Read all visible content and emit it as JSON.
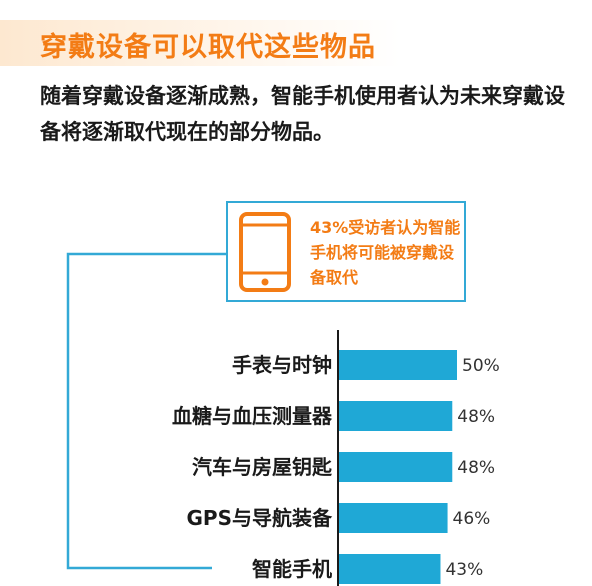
{
  "title": "穿戴设备可以取代这些物品",
  "subtitle": "随着穿戴设备逐渐成熟，智能手机使用者认为未来穿戴设备将逐渐取代现在的部分物品。",
  "callout": {
    "text": "43%受访者认为智能手机将可能被穿戴设备取代",
    "icon": "smartphone-icon"
  },
  "colors": {
    "accent": "#f37c15",
    "bar": "#1fa8d6",
    "line": "#33a9d6"
  },
  "chart_data": {
    "type": "bar",
    "orientation": "horizontal",
    "categories": [
      "手表与时钟",
      "血糖与血压测量器",
      "汽车与房屋钥匙",
      "GPS与导航装备",
      "智能手机"
    ],
    "values": [
      50,
      48,
      48,
      46,
      43
    ],
    "value_labels": [
      "50%",
      "48%",
      "48%",
      "46%",
      "43%"
    ],
    "xlim": [
      0,
      50
    ]
  }
}
